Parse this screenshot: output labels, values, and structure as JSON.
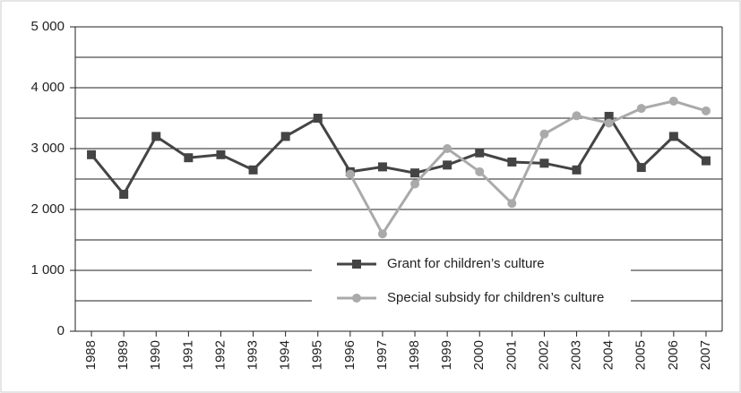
{
  "chart_data": {
    "type": "line",
    "categories": [
      "1988",
      "1989",
      "1990",
      "1991",
      "1992",
      "1993",
      "1994",
      "1995",
      "1996",
      "1997",
      "1998",
      "1999",
      "2000",
      "2001",
      "2002",
      "2003",
      "2004",
      "2005",
      "2006",
      "2007"
    ],
    "series": [
      {
        "name": "Grant for children’s culture",
        "color": "#444444",
        "marker": "square",
        "values": [
          2900,
          2250,
          3200,
          2850,
          2900,
          2650,
          3200,
          3500,
          2620,
          2700,
          2600,
          2730,
          2930,
          2780,
          2760,
          2650,
          3530,
          2690,
          3200,
          2800
        ]
      },
      {
        "name": "Special subsidy for children’s culture",
        "color": "#aaaaaa",
        "marker": "circle",
        "values": [
          null,
          null,
          null,
          null,
          null,
          null,
          null,
          null,
          2580,
          1600,
          2420,
          3000,
          2620,
          2100,
          3240,
          3540,
          3420,
          3660,
          3780,
          3620
        ]
      }
    ],
    "ylim": [
      0,
      5000
    ],
    "yticks": [
      0,
      {
        "value": 1000,
        "label": "1 000"
      },
      {
        "value": 2000,
        "label": "2 000"
      },
      {
        "value": 3000,
        "label": "3 000"
      },
      {
        "value": 4000,
        "label": "4 000"
      },
      {
        "value": 5000,
        "label": "5 000"
      }
    ],
    "minor_yticks": [
      500,
      1500,
      2500,
      3500,
      4500
    ],
    "grid": true
  }
}
